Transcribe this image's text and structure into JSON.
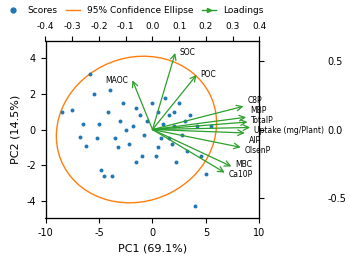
{
  "chart_data": {
    "type": "biplot",
    "x_label": "PC1 (69.1%)",
    "y_label": "PC2 (14.5%)",
    "xlim": [
      -10,
      10
    ],
    "xticks": [
      -10,
      -5,
      0,
      5,
      10
    ],
    "ylim": [
      -5.0,
      5.0
    ],
    "yticks": [
      -4,
      -2,
      0,
      2,
      4
    ],
    "x2lim": [
      -0.4,
      0.4
    ],
    "x2ticks": [
      -0.4,
      -0.3,
      -0.2,
      -0.1,
      0.0,
      0.1,
      0.2,
      0.3,
      0.4
    ],
    "y2lim": [
      -0.65,
      0.65
    ],
    "y2ticks": [
      -0.5,
      0.0,
      0.5
    ],
    "legend": "upper left",
    "series": [
      {
        "name": "Scores",
        "type": "scatter",
        "x": [
          -8.5,
          -7.5,
          -6.8,
          -6.5,
          -6.2,
          -5.8,
          -5.5,
          -5.2,
          -5.0,
          -4.8,
          -4.5,
          -4.2,
          -4.0,
          -3.8,
          -3.5,
          -3.2,
          -3.0,
          -2.8,
          -2.5,
          -2.2,
          -1.8,
          -1.5,
          -1.2,
          -1.0,
          -0.8,
          -0.5,
          0.0,
          0.3,
          0.5,
          0.8,
          1.0,
          1.2,
          1.5,
          1.8,
          2.0,
          2.2,
          2.5,
          2.8,
          3.0,
          3.2,
          3.5,
          4.0,
          4.2,
          4.5,
          5.0,
          5.5,
          1.5,
          0.5,
          2.0,
          -1.5
        ],
        "y": [
          1.0,
          1.1,
          -0.4,
          0.3,
          -0.9,
          3.1,
          2.0,
          -0.5,
          0.3,
          -2.3,
          -2.6,
          1.0,
          2.2,
          -2.6,
          -0.5,
          -1.0,
          0.5,
          1.5,
          0.0,
          -0.8,
          0.2,
          1.2,
          0.8,
          -1.5,
          -0.3,
          0.5,
          1.5,
          -1.5,
          1.0,
          -0.5,
          0.3,
          1.8,
          0.8,
          -0.8,
          0.2,
          -1.8,
          1.5,
          -0.3,
          0.5,
          -1.2,
          0.8,
          -4.3,
          0.2,
          -1.5,
          -2.5,
          0.2,
          -0.5,
          -1.0,
          1.0,
          -1.8
        ]
      },
      {
        "name": "95% Confidence Ellipse",
        "type": "ellipse",
        "cx": -1.5,
        "cy": 0.0,
        "width": 15.0,
        "height": 8.2,
        "angle": 4
      },
      {
        "name": "Loadings",
        "type": "arrow",
        "axis": "y2",
        "categories": [
          "SOC",
          "POC",
          "MAOC",
          "C8P",
          "MBP",
          "TotalP",
          "AIP",
          "OlsenP",
          "MBC",
          "Ca10P",
          "Uptake (mg/Plant)"
        ],
        "x": [
          0.085,
          0.165,
          -0.075,
          0.34,
          0.35,
          0.355,
          0.345,
          0.33,
          0.295,
          0.27,
          0.365
        ],
        "y": [
          0.56,
          0.4,
          0.36,
          0.17,
          0.09,
          0.055,
          -0.025,
          -0.13,
          -0.27,
          -0.315,
          0.015
        ]
      }
    ]
  }
}
